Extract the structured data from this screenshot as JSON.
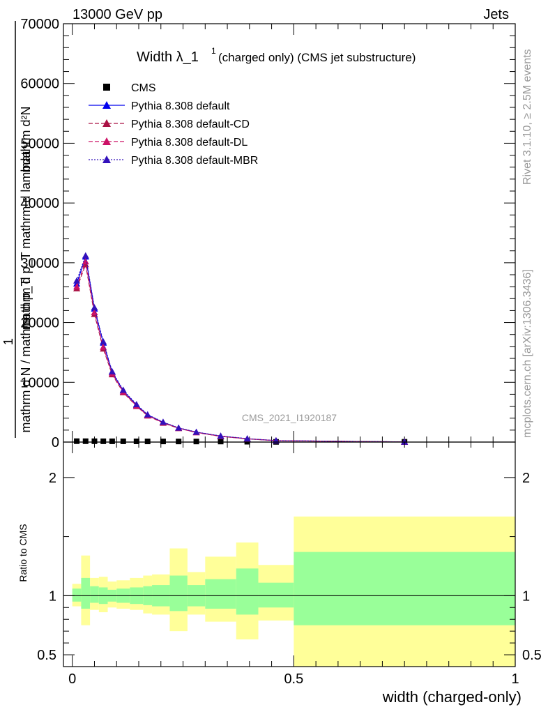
{
  "header": {
    "left": "13000 GeV pp",
    "right": "Jets"
  },
  "side_labels": {
    "rivet": "Rivet 3.1.10, ≥ 2.5M events",
    "mcplots": "mcplots.cern.ch [arXiv:1306.3436]"
  },
  "watermark": "CMS_2021_I1920187",
  "colors": {
    "cms": "#000000",
    "default": "#0000ee",
    "cd": "#aa1144",
    "dl": "#cc1166",
    "mbr": "#3311bb",
    "band_inner": "#99ff99",
    "band_outer": "#ffff99"
  },
  "chart_data": [
    {
      "type": "line",
      "title": {
        "main": "Width λ_1",
        "sup": "1",
        "tail": "(charged only) (CMS jet substructure)"
      },
      "ylabel": {
        "numerator": "mathrm d²N",
        "denominator": "mathrm d p_T mathrm d lambda",
        "prefix_num": "1",
        "prefix_den": "mathrm d N / mathrm d p_T"
      },
      "yticks": [
        "0",
        "10000",
        "20000",
        "30000",
        "40000",
        "50000",
        "60000",
        "70000"
      ],
      "xlim": [
        -0.02,
        1.0
      ],
      "ylim": [
        0,
        70000
      ],
      "x": [
        0.01,
        0.03,
        0.05,
        0.07,
        0.09,
        0.115,
        0.145,
        0.17,
        0.205,
        0.24,
        0.28,
        0.335,
        0.395,
        0.46,
        0.75
      ],
      "series": [
        {
          "name": "CMS",
          "marker": "square",
          "values": [
            150,
            145,
            140,
            135,
            130,
            125,
            120,
            110,
            105,
            100,
            95,
            90,
            60,
            30,
            40
          ]
        },
        {
          "name": "Pythia 8.308 default",
          "marker": "triangle",
          "style": "solid",
          "values": [
            26500,
            31000,
            22300,
            16600,
            11700,
            8600,
            6200,
            4550,
            3300,
            2350,
            1650,
            1000,
            560,
            240,
            25
          ]
        },
        {
          "name": "Pythia 8.308 default-CD",
          "marker": "triangle",
          "style": "dashed",
          "values": [
            25700,
            29700,
            21400,
            15600,
            11300,
            8300,
            6000,
            4400,
            3200,
            2300,
            1600,
            950,
            540,
            230,
            25
          ]
        },
        {
          "name": "Pythia 8.308 default-DL",
          "marker": "triangle",
          "style": "dashed",
          "values": [
            26000,
            30200,
            21700,
            15900,
            11500,
            8400,
            6050,
            4450,
            3250,
            2320,
            1620,
            960,
            545,
            235,
            25
          ]
        },
        {
          "name": "Pythia 8.308 default-MBR",
          "marker": "triangle",
          "style": "dotted",
          "values": [
            27000,
            31200,
            22500,
            16800,
            11800,
            8700,
            6300,
            4600,
            3350,
            2380,
            1680,
            1020,
            570,
            245,
            25
          ]
        }
      ]
    },
    {
      "type": "area",
      "ylabel": "Ratio to CMS",
      "xlabel": "width (charged-only)",
      "xticks": [
        "0",
        "0.5",
        "1"
      ],
      "yticks": [
        "0.5",
        "1",
        "2"
      ],
      "xlim": [
        -0.02,
        1.0
      ],
      "ylim": [
        0.4,
        2.3
      ],
      "bins": [
        {
          "lo": 0.0,
          "hi": 0.02,
          "inner": [
            0.95,
            1.06
          ],
          "outer": [
            0.91,
            1.1
          ]
        },
        {
          "lo": 0.02,
          "hi": 0.04,
          "inner": [
            0.89,
            1.15
          ],
          "outer": [
            0.75,
            1.34
          ]
        },
        {
          "lo": 0.04,
          "hi": 0.06,
          "inner": [
            0.94,
            1.08
          ],
          "outer": [
            0.88,
            1.15
          ]
        },
        {
          "lo": 0.06,
          "hi": 0.08,
          "inner": [
            0.93,
            1.07
          ],
          "outer": [
            0.86,
            1.16
          ]
        },
        {
          "lo": 0.08,
          "hi": 0.1,
          "inner": [
            0.95,
            1.05
          ],
          "outer": [
            0.9,
            1.12
          ]
        },
        {
          "lo": 0.1,
          "hi": 0.13,
          "inner": [
            0.94,
            1.06
          ],
          "outer": [
            0.89,
            1.13
          ]
        },
        {
          "lo": 0.13,
          "hi": 0.16,
          "inner": [
            0.93,
            1.07
          ],
          "outer": [
            0.88,
            1.15
          ]
        },
        {
          "lo": 0.16,
          "hi": 0.18,
          "inner": [
            0.92,
            1.08
          ],
          "outer": [
            0.85,
            1.17
          ]
        },
        {
          "lo": 0.18,
          "hi": 0.22,
          "inner": [
            0.91,
            1.09
          ],
          "outer": [
            0.84,
            1.18
          ]
        },
        {
          "lo": 0.22,
          "hi": 0.26,
          "inner": [
            0.87,
            1.17
          ],
          "outer": [
            0.7,
            1.4
          ]
        },
        {
          "lo": 0.26,
          "hi": 0.3,
          "inner": [
            0.91,
            1.09
          ],
          "outer": [
            0.84,
            1.2
          ]
        },
        {
          "lo": 0.3,
          "hi": 0.37,
          "inner": [
            0.89,
            1.14
          ],
          "outer": [
            0.78,
            1.33
          ]
        },
        {
          "lo": 0.37,
          "hi": 0.42,
          "inner": [
            0.84,
            1.23
          ],
          "outer": [
            0.63,
            1.45
          ]
        },
        {
          "lo": 0.42,
          "hi": 0.5,
          "inner": [
            0.9,
            1.11
          ],
          "outer": [
            0.79,
            1.26
          ]
        },
        {
          "lo": 0.5,
          "hi": 1.0,
          "inner": [
            0.75,
            1.37
          ],
          "outer": [
            0.4,
            1.67
          ]
        }
      ]
    }
  ]
}
